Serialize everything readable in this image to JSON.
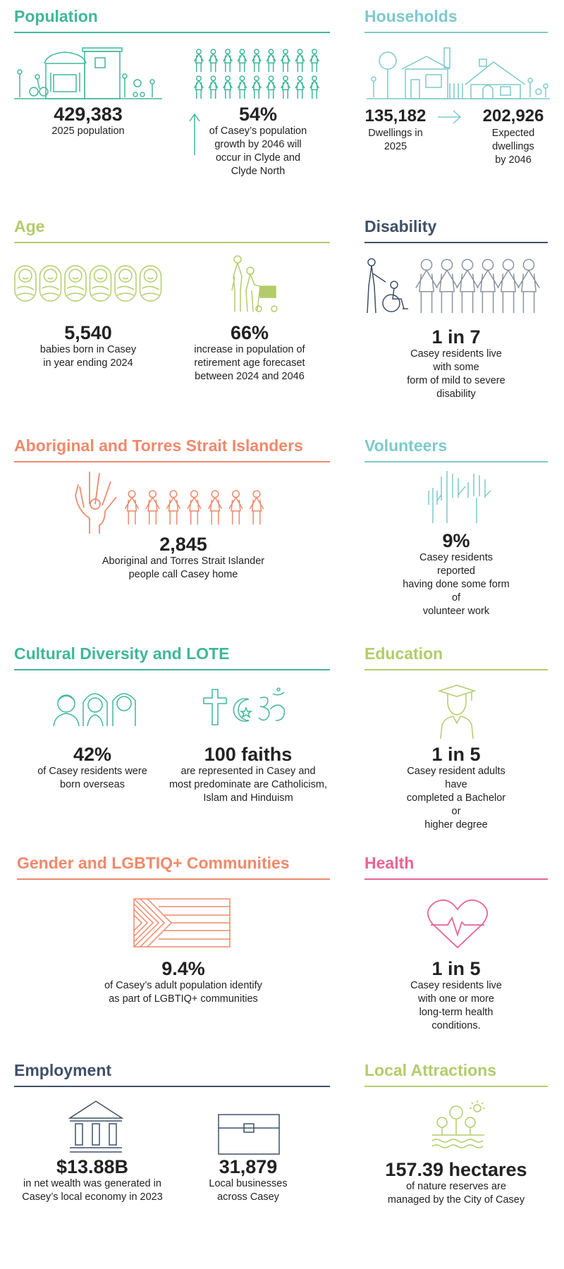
{
  "colors": {
    "population": "#3fb79a",
    "households": "#7ec9cc",
    "age": "#b3cc6a",
    "disability": "#3f5068",
    "aboriginal": "#f0896b",
    "volunteers": "#7ec9cc",
    "cultural": "#3fb79a",
    "education": "#b3cc6a",
    "gender": "#f0896b",
    "health": "#e8658f",
    "employment": "#3f5068",
    "attractions": "#b3cc6a"
  },
  "population": {
    "title": "Population",
    "total": {
      "value": "429,383",
      "label": "2025 population",
      "icon": "town-street-icon"
    },
    "growth": {
      "value": "54%",
      "label_lines": [
        "of Casey’s population",
        "growth by 2046 will",
        "occur in Clyde and",
        "Clyde North"
      ],
      "icon": "people-grid-icon"
    }
  },
  "households": {
    "title": "Households",
    "current": {
      "value": "135,182",
      "label_lines": [
        "Dwellings in",
        "2025"
      ]
    },
    "expected": {
      "value": "202,926",
      "label_lines": [
        "Expected dwellings",
        "by 2046"
      ]
    },
    "icon": "houses-icon"
  },
  "age": {
    "title": "Age",
    "babies": {
      "value": "5,540",
      "label_lines": [
        "babies born in Casey",
        "in year ending 2024"
      ],
      "icon": "baby-icon"
    },
    "retirement": {
      "value": "66%",
      "label_lines": [
        "increase in population of",
        "retirement age forecaset",
        "between 2024 and 2046"
      ],
      "icon": "elderly-couple-icon"
    }
  },
  "disability": {
    "title": "Disability",
    "value": "1 in 7",
    "label_lines": [
      "Casey residents live with some",
      "form of mild to severe disability"
    ],
    "icon": "wheelchair-icon"
  },
  "aboriginal": {
    "title": "Aboriginal and Torres Strait Islanders",
    "value": "2,845",
    "label_lines": [
      "Aboriginal and Torres Strait Islander",
      "people call Casey home"
    ],
    "icon": "hand-icon"
  },
  "volunteers": {
    "title": "Volunteers",
    "value": "9%",
    "label_lines": [
      "Casey residents reported",
      "having done some form of",
      "volunteer work"
    ],
    "icon": "raised-hands-icon"
  },
  "cultural": {
    "title": "Cultural Diversity and LOTE",
    "overseas": {
      "value": "42%",
      "label_lines": [
        "of Casey residents were",
        "born overseas"
      ],
      "icon": "faces-icon"
    },
    "faiths": {
      "value": "100 faiths",
      "label_lines": [
        "are represented in Casey and",
        "most predominate are Catholicism,",
        "Islam and Hinduism"
      ],
      "icon": "faith-symbols-icon"
    }
  },
  "education": {
    "title": "Education",
    "value": "1 in 5",
    "label_lines": [
      "Casey resident adults have",
      "completed a Bachelor or",
      "higher degree"
    ],
    "icon": "graduate-icon"
  },
  "gender": {
    "title": "Gender and LGBTIQ+ Communities",
    "value": "9.4%",
    "label_lines": [
      "of Casey’s adult population identify",
      "as part of LGBTIQ+ communities"
    ],
    "icon": "progress-flag-icon"
  },
  "health": {
    "title": "Health",
    "value": "1 in 5",
    "label_lines": [
      "Casey residents live with one or more",
      "long-term health conditions."
    ],
    "icon": "heart-pulse-icon"
  },
  "employment": {
    "title": "Employment",
    "wealth": {
      "value": "$13.88B",
      "label_lines": [
        "in net wealth was generated in",
        "Casey’s local economy in 2023"
      ],
      "icon": "bank-icon"
    },
    "business": {
      "value": "31,879",
      "label_lines": [
        "Local businesses",
        "across Casey"
      ],
      "icon": "briefcase-icon"
    }
  },
  "attractions": {
    "title": "Local Attractions",
    "value": "157.39 hectares",
    "label_lines": [
      "of nature reserves are",
      "managed by the City of Casey"
    ],
    "icon": "nature-reserve-icon"
  }
}
